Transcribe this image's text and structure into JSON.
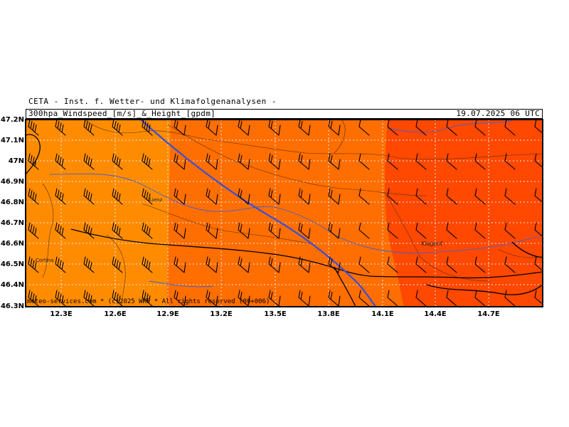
{
  "header": {
    "institute": "CETA - Inst. f. Wetter- und Klimafolgenanalysen -",
    "title": "300hpa_Windspeed_[m/s]_&_Height_[gpdm]",
    "datetime": "19.07.2025 06 UTC"
  },
  "axes": {
    "lat_labels": [
      "47.2N",
      "47.1N",
      "47N",
      "46.9N",
      "46.8N",
      "46.7N",
      "46.6N",
      "46.5N",
      "46.4N",
      "46.3N"
    ],
    "lon_labels": [
      "12.3E",
      "12.6E",
      "12.9E",
      "13.2E",
      "13.5E",
      "13.8E",
      "14.1E",
      "14.4E",
      "14.7E"
    ]
  },
  "places": {
    "lienz": "Lienz",
    "cortina": "Cortina",
    "klagenfurt": "Klagenf"
  },
  "footer": "meteo-services.com * (c)2025 WKF * All rights reserved (00+006)",
  "colors": {
    "zone_west": "#ff8c00",
    "zone_mid": "#ff6e00",
    "zone_east": "#ff4800",
    "height_contour": "#3a4fd8",
    "border": "#000000"
  }
}
